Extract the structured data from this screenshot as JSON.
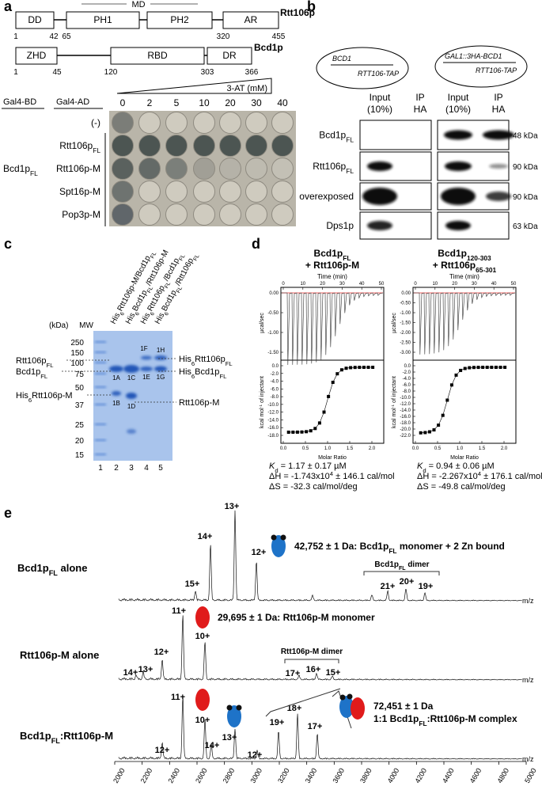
{
  "panel_a": {
    "label": "a",
    "md": "MD",
    "rtt106p": {
      "name": "Rtt106p",
      "domains": [
        "DD",
        "PH1",
        "PH2",
        "AR"
      ],
      "positions": [
        1,
        42,
        65,
        320,
        455
      ]
    },
    "bcd1p": {
      "name": "Bcd1p",
      "domains": [
        "ZHD",
        "RBD",
        "DR"
      ],
      "positions": [
        1,
        45,
        120,
        303,
        366
      ]
    },
    "gradient_label": "3-AT (mM)",
    "concentrations": [
      0,
      2,
      5,
      10,
      20,
      30,
      40
    ],
    "bd_header": "Gal4-BD",
    "ad_header": "Gal4-AD",
    "bd_construct": [
      "Bcd1p",
      "FL"
    ],
    "ad_constructs": [
      [
        "(-)"
      ],
      [
        "Rtt106p",
        "FL"
      ],
      [
        "Rtt106p-M"
      ],
      [
        "Spt16p-M"
      ],
      [
        "Pop3p-M"
      ]
    ]
  },
  "panel_b": {
    "label": "b",
    "strain1": {
      "gene": "BCD1",
      "tag": "RTT106-TAP"
    },
    "strain2": {
      "gene": "GAL1::3HA-BCD1",
      "tag": "RTT106-TAP"
    },
    "columns": [
      [
        "Input",
        "(10%)"
      ],
      [
        "IP",
        "HA"
      ],
      [
        "Input",
        "(10%)"
      ],
      [
        "IP",
        "HA"
      ]
    ],
    "rows": [
      [
        "Bcd1p",
        "FL"
      ],
      [
        "Rtt106p",
        "FL"
      ],
      [
        "overexposed"
      ],
      [
        "Dps1p"
      ]
    ],
    "sizes": [
      "48 kDa",
      "90 kDa",
      "90 kDa",
      "63 kDa"
    ]
  },
  "panel_c": {
    "label": "c",
    "lanes": [
      [
        "His",
        "6",
        "Rtt106p-M/Bcd1p",
        "FL"
      ],
      [
        "His",
        "6",
        "Bcd1p",
        "FL",
        "/Rtt106p-M"
      ],
      [
        "His",
        "6",
        "Rtt106p",
        "FL",
        "/Bcd1p",
        "FL"
      ],
      [
        "His",
        "6",
        "Bcd1p",
        "FL",
        "/Rtt106p",
        "FL"
      ]
    ],
    "unit": "(kDa)",
    "marker": "MW",
    "marker_sizes": [
      250,
      150,
      100,
      75,
      50,
      37,
      25,
      20,
      15
    ],
    "left_labels": [
      [
        "Rtt106p",
        "FL"
      ],
      [
        "Bcd1p",
        "FL"
      ],
      [
        "His",
        "6",
        "Rtt106p-M"
      ]
    ],
    "right_labels": [
      [
        "His",
        "6",
        "Rtt106p",
        "FL"
      ],
      [
        "His",
        "6",
        "Bcd1p",
        "FL"
      ],
      [
        "Rtt106p-M"
      ]
    ],
    "bands": [
      "1A",
      "1B",
      "1C",
      "1D",
      "1E",
      "1F",
      "1G",
      "1H"
    ],
    "lane_numbers": [
      1,
      2,
      3,
      4,
      5
    ]
  },
  "panel_d": {
    "label": "d",
    "time_label": "Time (min)",
    "time_ticks": [
      0,
      10,
      20,
      30,
      40,
      50
    ],
    "power_label": "µcal/sec",
    "heat_label": [
      "kcal mol",
      "-1",
      " of injectant"
    ],
    "ratio_label": "Molar Ratio",
    "ratio_ticks": [
      "0.0",
      "0.5",
      "1.0",
      "1.5",
      "2.0"
    ],
    "experiments": [
      {
        "title": [
          [
            "Bcd1p",
            "FL"
          ],
          [
            "+ Rtt106p-M"
          ]
        ],
        "power_ticks": [
          "0.00",
          "-0.50",
          "-1.00",
          "-1.50"
        ],
        "heat_ticks": [
          "0.0",
          "-2.0",
          "-4.0",
          "-6.0",
          "-8.0",
          "-10.0",
          "-12.0",
          "-14.0",
          "-16.0",
          "-18.0"
        ],
        "kd": [
          "K",
          "d",
          " = 1.17 ± 0.17 µM"
        ],
        "dh": [
          "ΔH = -1.743x10",
          "4",
          " ± 146.1 cal/mol"
        ],
        "ds": "ΔS = -32.3 cal/mol/deg"
      },
      {
        "title": [
          [
            "Bcd1p",
            "120-303"
          ],
          [
            "+ Rtt106p",
            "65-301"
          ]
        ],
        "power_ticks": [
          "0.00",
          "-0.50",
          "-1.00",
          "-1.50",
          "-2.00",
          "-2.50",
          "-3.00"
        ],
        "heat_ticks": [
          "0.0",
          "-2.0",
          "-4.0",
          "-6.0",
          "-8.0",
          "-10.0",
          "-12.0",
          "-14.0",
          "-16.0",
          "-18.0",
          "-20.0",
          "-22.0"
        ],
        "kd": [
          "K",
          "d",
          " = 0.94 ± 0.06 µM"
        ],
        "dh": [
          "ΔH = -2.267x10",
          "4",
          " ± 176.1 cal/mol"
        ],
        "ds": "ΔS = -49.8 cal/mol/deg"
      }
    ]
  },
  "panel_e": {
    "label": "e",
    "axis_label": "m/z",
    "mz_ticks": [
      "2000",
      "2200",
      "2400",
      "2600",
      "2800",
      "3000",
      "3200",
      "3400",
      "3600",
      "3800",
      "4000",
      "4200",
      "4400",
      "4600",
      "4800",
      "5000"
    ],
    "spectra": [
      {
        "name": [
          "Bcd1p",
          "FL",
          " alone"
        ],
        "peaks": [
          "15+",
          "14+",
          "13+",
          "12+",
          "21+",
          "20+",
          "19+"
        ],
        "mass": [
          "42,752  ± 1 Da:  Bcd1p",
          "FL",
          " monomer + 2 Zn bound"
        ],
        "dimer": [
          "Bcd1p",
          "FL",
          " dimer"
        ]
      },
      {
        "name": [
          "Rtt106p-M alone"
        ],
        "peaks": [
          "14+",
          "13+",
          "12+",
          "11+",
          "10+",
          "17+",
          "16+",
          "15+"
        ],
        "mass": [
          "29,695  ± 1 Da: Rtt106p-M monomer"
        ],
        "dimer": [
          "Rtt106p-M dimer"
        ]
      },
      {
        "name": [
          "Bcd1p",
          "FL",
          ":Rtt106p-M"
        ],
        "peaks": [
          "12+",
          "11+",
          "10+",
          "14+",
          "13+",
          "12+",
          "19+",
          "18+",
          "17+"
        ],
        "mass": [
          "72,451 ± 1 Da"
        ],
        "complex": [
          "1:1 Bcd1p",
          "FL",
          ":Rtt106p-M complex"
        ]
      }
    ]
  }
}
